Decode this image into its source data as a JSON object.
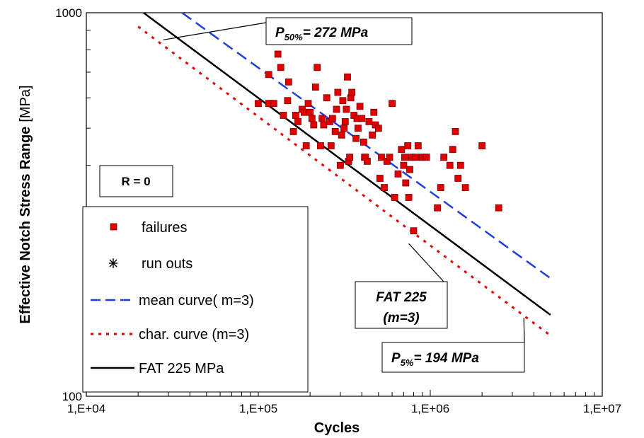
{
  "chart_data": {
    "type": "scatter",
    "x_scale": "log",
    "y_scale": "log",
    "xlim": [
      10000,
      10000000
    ],
    "ylim": [
      100,
      1000
    ],
    "xlabel": "Cycles",
    "ylabel_bold": "Effective Notch Stress Range",
    "ylabel_unit": "[MPa]",
    "x_ticks": [
      {
        "value": 10000,
        "label": "1,E+04"
      },
      {
        "value": 100000,
        "label": "1,E+05"
      },
      {
        "value": 1000000,
        "label": "1,E+06"
      },
      {
        "value": 10000000,
        "label": "1,E+07"
      }
    ],
    "y_ticks": [
      {
        "value": 100,
        "label": "100"
      },
      {
        "value": 1000,
        "label": "1000"
      }
    ],
    "grid": false,
    "legend_placement": "bottom-left",
    "colors": {
      "failures": "#e00000",
      "mean": "#1f3fdd",
      "char": "#e00000",
      "fat": "#000000"
    },
    "series": [
      {
        "name": "failures",
        "kind": "points",
        "marker": "square",
        "points": [
          [
            100000,
            580
          ],
          [
            115000,
            580
          ],
          [
            123000,
            580
          ],
          [
            130000,
            780
          ],
          [
            115000,
            690
          ],
          [
            135000,
            720
          ],
          [
            140000,
            540
          ],
          [
            148000,
            590
          ],
          [
            150000,
            660
          ],
          [
            160000,
            490
          ],
          [
            165000,
            540
          ],
          [
            170000,
            520
          ],
          [
            180000,
            560
          ],
          [
            185000,
            550
          ],
          [
            190000,
            450
          ],
          [
            195000,
            580
          ],
          [
            200000,
            550
          ],
          [
            205000,
            530
          ],
          [
            210000,
            510
          ],
          [
            215000,
            640
          ],
          [
            220000,
            720
          ],
          [
            230000,
            450
          ],
          [
            235000,
            530
          ],
          [
            240000,
            510
          ],
          [
            250000,
            600
          ],
          [
            260000,
            520
          ],
          [
            265000,
            450
          ],
          [
            270000,
            530
          ],
          [
            280000,
            490
          ],
          [
            285000,
            560
          ],
          [
            290000,
            620
          ],
          [
            300000,
            400
          ],
          [
            305000,
            480
          ],
          [
            310000,
            590
          ],
          [
            315000,
            500
          ],
          [
            320000,
            520
          ],
          [
            325000,
            560
          ],
          [
            330000,
            680
          ],
          [
            335000,
            410
          ],
          [
            340000,
            420
          ],
          [
            345000,
            600
          ],
          [
            350000,
            620
          ],
          [
            360000,
            540
          ],
          [
            370000,
            470
          ],
          [
            375000,
            530
          ],
          [
            380000,
            500
          ],
          [
            390000,
            570
          ],
          [
            400000,
            530
          ],
          [
            410000,
            460
          ],
          [
            415000,
            420
          ],
          [
            420000,
            420
          ],
          [
            430000,
            410
          ],
          [
            440000,
            520
          ],
          [
            460000,
            480
          ],
          [
            470000,
            550
          ],
          [
            480000,
            510
          ],
          [
            500000,
            500
          ],
          [
            510000,
            370
          ],
          [
            520000,
            420
          ],
          [
            540000,
            350
          ],
          [
            560000,
            410
          ],
          [
            580000,
            420
          ],
          [
            600000,
            580
          ],
          [
            620000,
            330
          ],
          [
            650000,
            380
          ],
          [
            680000,
            440
          ],
          [
            700000,
            400
          ],
          [
            710000,
            420
          ],
          [
            720000,
            360
          ],
          [
            740000,
            450
          ],
          [
            750000,
            330
          ],
          [
            760000,
            390
          ],
          [
            780000,
            420
          ],
          [
            800000,
            270
          ],
          [
            820000,
            420
          ],
          [
            850000,
            450
          ],
          [
            900000,
            420
          ],
          [
            950000,
            420
          ],
          [
            1100000,
            310
          ],
          [
            1150000,
            350
          ],
          [
            1200000,
            420
          ],
          [
            1300000,
            400
          ],
          [
            1350000,
            440
          ],
          [
            1400000,
            490
          ],
          [
            1450000,
            370
          ],
          [
            1500000,
            400
          ],
          [
            1600000,
            350
          ],
          [
            2000000,
            450
          ],
          [
            2500000,
            310
          ]
        ]
      },
      {
        "name": "run outs",
        "kind": "points",
        "marker": "asterisk",
        "points": []
      },
      {
        "name": "mean curve( m=3)",
        "kind": "line",
        "style": "dashed",
        "points": [
          [
            36000,
            1000
          ],
          [
            5000000,
            203
          ]
        ]
      },
      {
        "name": "char. curve (m=3)",
        "kind": "line",
        "style": "dotted",
        "points": [
          [
            20000,
            920
          ],
          [
            5000000,
            144
          ]
        ]
      },
      {
        "name": "FAT 225 MPa",
        "kind": "line",
        "style": "solid",
        "points": [
          [
            21500,
            1000
          ],
          [
            5000000,
            163
          ]
        ]
      }
    ],
    "annotations": [
      {
        "main": "P",
        "sub": "50%",
        "rest": "= 272 MPa",
        "target": [
          28000,
          850
        ]
      },
      {
        "main": "FAT 225",
        "line2": "(m=3)",
        "target": [
          750000,
          250
        ]
      },
      {
        "main": "P",
        "sub": "5%",
        "rest": "= 194 MPa",
        "target": [
          3500000,
          160
        ]
      },
      {
        "main": "R = 0"
      }
    ]
  }
}
